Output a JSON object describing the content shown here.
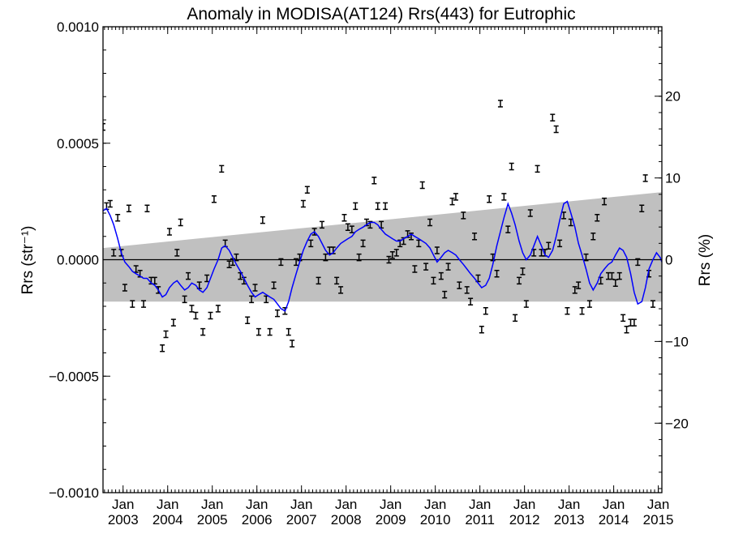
{
  "chart_data": {
    "type": "scatter",
    "title": "Anomaly in MODISA(AT124) Rrs(443) for Eutrophic",
    "ylabel_left": "Rrs (str⁻¹)",
    "ylabel_right": "Rrs (%)",
    "xlabel": "",
    "ylim": [
      -0.001,
      0.001
    ],
    "ylim_right_percent": [
      -28.5,
      28.5
    ],
    "xlim": [
      2002.55,
      2015.08
    ],
    "grid": false,
    "legend": "none",
    "y_ticks_left": [
      {
        "value": 0.001,
        "label": "0.0010"
      },
      {
        "value": 0.0005,
        "label": "0.0005"
      },
      {
        "value": 0.0,
        "label": "0.0000"
      },
      {
        "value": -0.0005,
        "label": "−0.0005"
      },
      {
        "value": -0.001,
        "label": "−0.0010"
      }
    ],
    "y_ticks_right": [
      {
        "value": 20,
        "label": "20"
      },
      {
        "value": 10,
        "label": "10"
      },
      {
        "value": 0,
        "label": "0"
      },
      {
        "value": -10,
        "label": "−10"
      },
      {
        "value": -20,
        "label": "−20"
      }
    ],
    "x_ticks": [
      {
        "value": 2003.0,
        "month": "Jan",
        "year": "2003"
      },
      {
        "value": 2004.0,
        "month": "Jan",
        "year": "2004"
      },
      {
        "value": 2005.0,
        "month": "Jan",
        "year": "2005"
      },
      {
        "value": 2006.0,
        "month": "Jan",
        "year": "2006"
      },
      {
        "value": 2007.0,
        "month": "Jan",
        "year": "2007"
      },
      {
        "value": 2008.0,
        "month": "Jan",
        "year": "2008"
      },
      {
        "value": 2009.0,
        "month": "Jan",
        "year": "2009"
      },
      {
        "value": 2010.0,
        "month": "Jan",
        "year": "2010"
      },
      {
        "value": 2011.0,
        "month": "Jan",
        "year": "2011"
      },
      {
        "value": 2012.0,
        "month": "Jan",
        "year": "2012"
      },
      {
        "value": 2013.0,
        "month": "Jan",
        "year": "2013"
      },
      {
        "value": 2014.0,
        "month": "Jan",
        "year": "2014"
      },
      {
        "value": 2015.0,
        "month": "Jan",
        "year": "2015"
      }
    ],
    "band": {
      "x": [
        2002.55,
        2015.08
      ],
      "upper": [
        5e-05,
        0.00029
      ],
      "lower": [
        -0.00018,
        -0.00018
      ]
    },
    "zero_line": 0,
    "points": [
      [
        2002.55,
        0.00057
      ],
      [
        2002.63,
        0.00023
      ],
      [
        2002.71,
        0.00024
      ],
      [
        2002.79,
        3e-05
      ],
      [
        2002.88,
        0.00018
      ],
      [
        2002.96,
        3e-05
      ],
      [
        2003.04,
        -0.00012
      ],
      [
        2003.13,
        0.00022
      ],
      [
        2003.21,
        -0.00019
      ],
      [
        2003.29,
        -4e-05
      ],
      [
        2003.38,
        -6e-05
      ],
      [
        2003.46,
        -0.00019
      ],
      [
        2003.54,
        0.00022
      ],
      [
        2003.63,
        -9e-05
      ],
      [
        2003.71,
        -9e-05
      ],
      [
        2003.79,
        -0.00013
      ],
      [
        2003.88,
        -0.00038
      ],
      [
        2003.96,
        -0.00032
      ],
      [
        2004.04,
        0.00012
      ],
      [
        2004.13,
        -0.00027
      ],
      [
        2004.21,
        3e-05
      ],
      [
        2004.29,
        0.00016
      ],
      [
        2004.38,
        -0.00017
      ],
      [
        2004.46,
        -7e-05
      ],
      [
        2004.54,
        -0.00021
      ],
      [
        2004.63,
        -0.00024
      ],
      [
        2004.71,
        -0.00011
      ],
      [
        2004.79,
        -0.00031
      ],
      [
        2004.88,
        -8e-05
      ],
      [
        2004.96,
        -0.00024
      ],
      [
        2005.04,
        0.00026
      ],
      [
        2005.13,
        -0.00021
      ],
      [
        2005.21,
        0.00039
      ],
      [
        2005.29,
        7e-05
      ],
      [
        2005.38,
        -2e-05
      ],
      [
        2005.46,
        -1e-05
      ],
      [
        2005.54,
        1e-05
      ],
      [
        2005.63,
        -7e-05
      ],
      [
        2005.71,
        -9e-05
      ],
      [
        2005.79,
        -0.00026
      ],
      [
        2005.88,
        -0.00017
      ],
      [
        2005.96,
        -0.00012
      ],
      [
        2006.04,
        -0.00031
      ],
      [
        2006.13,
        0.00017
      ],
      [
        2006.21,
        -0.00017
      ],
      [
        2006.29,
        -0.00031
      ],
      [
        2006.38,
        -0.00011
      ],
      [
        2006.46,
        -0.00023
      ],
      [
        2006.54,
        -1e-05
      ],
      [
        2006.63,
        -0.00022
      ],
      [
        2006.71,
        -0.00031
      ],
      [
        2006.79,
        -0.00036
      ],
      [
        2006.88,
        -1e-05
      ],
      [
        2006.96,
        1e-05
      ],
      [
        2007.04,
        0.00024
      ],
      [
        2007.13,
        0.0003
      ],
      [
        2007.21,
        7e-05
      ],
      [
        2007.29,
        0.00012
      ],
      [
        2007.38,
        -9e-05
      ],
      [
        2007.46,
        0.00015
      ],
      [
        2007.54,
        1e-05
      ],
      [
        2007.63,
        4e-05
      ],
      [
        2007.71,
        4e-05
      ],
      [
        2007.79,
        -9e-05
      ],
      [
        2007.88,
        -0.00013
      ],
      [
        2007.96,
        0.00018
      ],
      [
        2008.04,
        0.00014
      ],
      [
        2008.13,
        0.00013
      ],
      [
        2008.21,
        0.00023
      ],
      [
        2008.29,
        1e-05
      ],
      [
        2008.38,
        7e-05
      ],
      [
        2008.46,
        0.00016
      ],
      [
        2008.54,
        0.00015
      ],
      [
        2008.63,
        0.00034
      ],
      [
        2008.71,
        0.00023
      ],
      [
        2008.79,
        0.00015
      ],
      [
        2008.88,
        0.00023
      ],
      [
        2008.96,
        0.0
      ],
      [
        2009.04,
        2e-05
      ],
      [
        2009.13,
        3e-05
      ],
      [
        2009.21,
        7e-05
      ],
      [
        2009.29,
        8e-05
      ],
      [
        2009.38,
        0.00011
      ],
      [
        2009.46,
        0.0001
      ],
      [
        2009.54,
        -4e-05
      ],
      [
        2009.63,
        7e-05
      ],
      [
        2009.71,
        0.00032
      ],
      [
        2009.79,
        -3e-05
      ],
      [
        2009.88,
        0.00016
      ],
      [
        2009.96,
        -9e-05
      ],
      [
        2010.04,
        4e-05
      ],
      [
        2010.13,
        -7e-05
      ],
      [
        2010.21,
        -0.00015
      ],
      [
        2010.29,
        -3e-05
      ],
      [
        2010.38,
        0.00025
      ],
      [
        2010.46,
        0.00027
      ],
      [
        2010.54,
        -0.00011
      ],
      [
        2010.63,
        0.00019
      ],
      [
        2010.71,
        -0.00013
      ],
      [
        2010.79,
        -0.00018
      ],
      [
        2010.88,
        0.0001
      ],
      [
        2010.96,
        -8e-05
      ],
      [
        2011.04,
        -0.0003
      ],
      [
        2011.13,
        -0.00022
      ],
      [
        2011.21,
        0.00026
      ],
      [
        2011.29,
        1e-05
      ],
      [
        2011.38,
        -6e-05
      ],
      [
        2011.46,
        0.00067
      ],
      [
        2011.54,
        0.00027
      ],
      [
        2011.63,
        0.00013
      ],
      [
        2011.71,
        0.0004
      ],
      [
        2011.79,
        -0.00025
      ],
      [
        2011.88,
        -9e-05
      ],
      [
        2011.96,
        -5e-05
      ],
      [
        2012.04,
        -0.00019
      ],
      [
        2012.13,
        0.0002
      ],
      [
        2012.21,
        3e-05
      ],
      [
        2012.29,
        0.00039
      ],
      [
        2012.38,
        3e-05
      ],
      [
        2012.46,
        3e-05
      ],
      [
        2012.54,
        6e-05
      ],
      [
        2012.63,
        0.00061
      ],
      [
        2012.71,
        0.00056
      ],
      [
        2012.79,
        7e-05
      ],
      [
        2012.88,
        0.00019
      ],
      [
        2012.96,
        -0.00022
      ],
      [
        2013.04,
        0.00016
      ],
      [
        2013.13,
        -0.00013
      ],
      [
        2013.21,
        -0.00011
      ],
      [
        2013.29,
        -0.00022
      ],
      [
        2013.38,
        1e-05
      ],
      [
        2013.46,
        -0.00019
      ],
      [
        2013.54,
        0.0001
      ],
      [
        2013.63,
        0.00018
      ],
      [
        2013.71,
        -9e-05
      ],
      [
        2013.79,
        0.00025
      ],
      [
        2013.88,
        -7e-05
      ],
      [
        2013.96,
        -7e-05
      ],
      [
        2014.04,
        -0.0001
      ],
      [
        2014.13,
        -7e-05
      ],
      [
        2014.21,
        -0.00025
      ],
      [
        2014.29,
        -0.0003
      ],
      [
        2014.38,
        -0.00027
      ],
      [
        2014.46,
        -0.00027
      ],
      [
        2014.54,
        -1e-05
      ],
      [
        2014.63,
        0.00022
      ],
      [
        2014.71,
        0.00035
      ],
      [
        2014.79,
        -6e-05
      ],
      [
        2014.88,
        -0.00019
      ]
    ],
    "trend_line": {
      "color": "#0000ff",
      "x": [
        2002.55,
        2002.63,
        2002.71,
        2002.79,
        2002.88,
        2002.96,
        2003.04,
        2003.13,
        2003.21,
        2003.29,
        2003.38,
        2003.46,
        2003.54,
        2003.63,
        2003.71,
        2003.79,
        2003.88,
        2003.96,
        2004.04,
        2004.13,
        2004.21,
        2004.29,
        2004.38,
        2004.46,
        2004.54,
        2004.63,
        2004.71,
        2004.79,
        2004.88,
        2004.96,
        2005.04,
        2005.13,
        2005.21,
        2005.29,
        2005.38,
        2005.46,
        2005.54,
        2005.63,
        2005.71,
        2005.79,
        2005.88,
        2005.96,
        2006.04,
        2006.13,
        2006.21,
        2006.29,
        2006.38,
        2006.46,
        2006.54,
        2006.63,
        2006.71,
        2006.79,
        2006.88,
        2006.96,
        2007.04,
        2007.13,
        2007.21,
        2007.29,
        2007.38,
        2007.46,
        2007.54,
        2007.63,
        2007.71,
        2007.79,
        2007.88,
        2007.96,
        2008.04,
        2008.13,
        2008.21,
        2008.29,
        2008.38,
        2008.46,
        2008.54,
        2008.63,
        2008.71,
        2008.79,
        2008.88,
        2008.96,
        2009.04,
        2009.13,
        2009.21,
        2009.29,
        2009.38,
        2009.46,
        2009.54,
        2009.63,
        2009.71,
        2009.79,
        2009.88,
        2009.96,
        2010.04,
        2010.13,
        2010.21,
        2010.29,
        2010.38,
        2010.46,
        2010.54,
        2010.63,
        2010.71,
        2010.79,
        2010.88,
        2010.96,
        2011.04,
        2011.13,
        2011.21,
        2011.29,
        2011.38,
        2011.46,
        2011.54,
        2011.63,
        2011.71,
        2011.79,
        2011.88,
        2011.96,
        2012.04,
        2012.13,
        2012.21,
        2012.29,
        2012.38,
        2012.46,
        2012.54,
        2012.63,
        2012.71,
        2012.79,
        2012.88,
        2012.96,
        2013.04,
        2013.13,
        2013.21,
        2013.29,
        2013.38,
        2013.46,
        2013.54,
        2013.63,
        2013.71,
        2013.79,
        2013.88,
        2013.96,
        2014.04,
        2014.13,
        2014.21,
        2014.29,
        2014.38,
        2014.46,
        2014.54,
        2014.63,
        2014.71,
        2014.79,
        2014.88,
        2014.96,
        2015.04,
        2015.08
      ],
      "y": [
        0.00021,
        0.00022,
        0.00019,
        0.00015,
        9e-05,
        3e-05,
        -1e-05,
        -3e-05,
        -5e-05,
        -6e-05,
        -7e-05,
        -8e-05,
        -8e-05,
        -0.0001,
        -0.00011,
        -0.00013,
        -0.00016,
        -0.00015,
        -0.00012,
        -0.0001,
        -9e-05,
        -0.00011,
        -0.00013,
        -0.00012,
        -0.0001,
        -0.00011,
        -0.00013,
        -0.00014,
        -0.00012,
        -8e-05,
        -4e-05,
        0.0,
        5e-05,
        6e-05,
        4e-05,
        1e-05,
        -2e-05,
        -5e-05,
        -8e-05,
        -0.00011,
        -0.00014,
        -0.00016,
        -0.00015,
        -0.00014,
        -0.00015,
        -0.00016,
        -0.00017,
        -0.00019,
        -0.00021,
        -0.00022,
        -0.00018,
        -0.00012,
        -6e-05,
        -1e-05,
        4e-05,
        8e-05,
        0.00011,
        0.00012,
        0.0001,
        7e-05,
        4e-05,
        2e-05,
        3e-05,
        5e-05,
        7e-05,
        8e-05,
        9e-05,
        0.0001,
        0.00012,
        0.00013,
        0.00014,
        0.00015,
        0.00016,
        0.00016,
        0.00015,
        0.00013,
        0.00011,
        0.0001,
        9e-05,
        8e-05,
        8e-05,
        9e-05,
        0.0001,
        0.00011,
        0.0001,
        9e-05,
        8e-05,
        7e-05,
        5e-05,
        2e-05,
        -1e-05,
        1e-05,
        3e-05,
        4e-05,
        3e-05,
        2e-05,
        0.0,
        -2e-05,
        -4e-05,
        -6e-05,
        -8e-05,
        -0.0001,
        -0.00012,
        -0.00011,
        -8e-05,
        -2e-05,
        6e-05,
        0.00012,
        0.00018,
        0.00024,
        0.0002,
        0.00015,
        8e-05,
        3e-05,
        0.0,
        2e-05,
        6e-05,
        0.0001,
        6e-05,
        2e-05,
        1e-05,
        4e-05,
        0.0001,
        0.00017,
        0.00024,
        0.00025,
        0.0002,
        0.00014,
        7e-05,
        2e-05,
        -4e-05,
        -0.0001,
        -0.00013,
        -0.0001,
        -6e-05,
        -4e-05,
        -2e-05,
        -1e-05,
        2e-05,
        5e-05,
        4e-05,
        1e-05,
        -6e-05,
        -0.00014,
        -0.00019,
        -0.00018,
        -0.00012,
        -4e-05,
        0.0,
        3e-05,
        1e-05,
        -1e-05
      ]
    }
  }
}
